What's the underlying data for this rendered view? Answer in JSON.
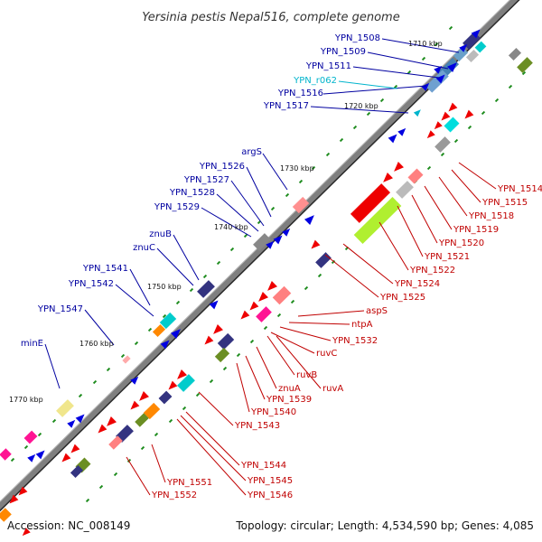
{
  "title": "Yersinia pestis Nepal516, complete genome",
  "footer": {
    "accession": "Accession: NC_008149",
    "summary": "Topology: circular; Length: 4,534,590 bp; Genes: 4,085"
  },
  "ticks": [
    "1710 kbp",
    "1720 kbp",
    "1730 kbp",
    "1740 kbp",
    "1750 kbp",
    "1760 kbp",
    "1770 kbp"
  ],
  "outer_labels": [
    "YPN_1508",
    "YPN_1509",
    "YPN_1511",
    "YPN_r062",
    "YPN_1516",
    "YPN_1517",
    "argS",
    "YPN_1526",
    "YPN_1527",
    "YPN_1528",
    "YPN_1529",
    "znuB",
    "znuC",
    "YPN_1541",
    "YPN_1542",
    "YPN_1547",
    "minE"
  ],
  "inner_labels": [
    "YPN_1514",
    "YPN_1515",
    "YPN_1518",
    "YPN_1519",
    "YPN_1520",
    "YPN_1521",
    "YPN_1522",
    "YPN_1524",
    "YPN_1525",
    "aspS",
    "ntpA",
    "YPN_1532",
    "ruvC",
    "ruvB",
    "ruvA",
    "znuA",
    "YPN_1539",
    "YPN_1540",
    "YPN_1543",
    "YPN_1544",
    "YPN_1545",
    "YPN_1546",
    "YPN_1551",
    "YPN_1552"
  ],
  "colors": {
    "label_outer": "#0000a0",
    "label_inner": "#c00000",
    "label_rna": "#00b4cc",
    "backbone": "#7f7f7f",
    "gene_forward": "#0000e0",
    "gene_reverse": "#ee0000",
    "tick_green": "#1e8c1e"
  }
}
